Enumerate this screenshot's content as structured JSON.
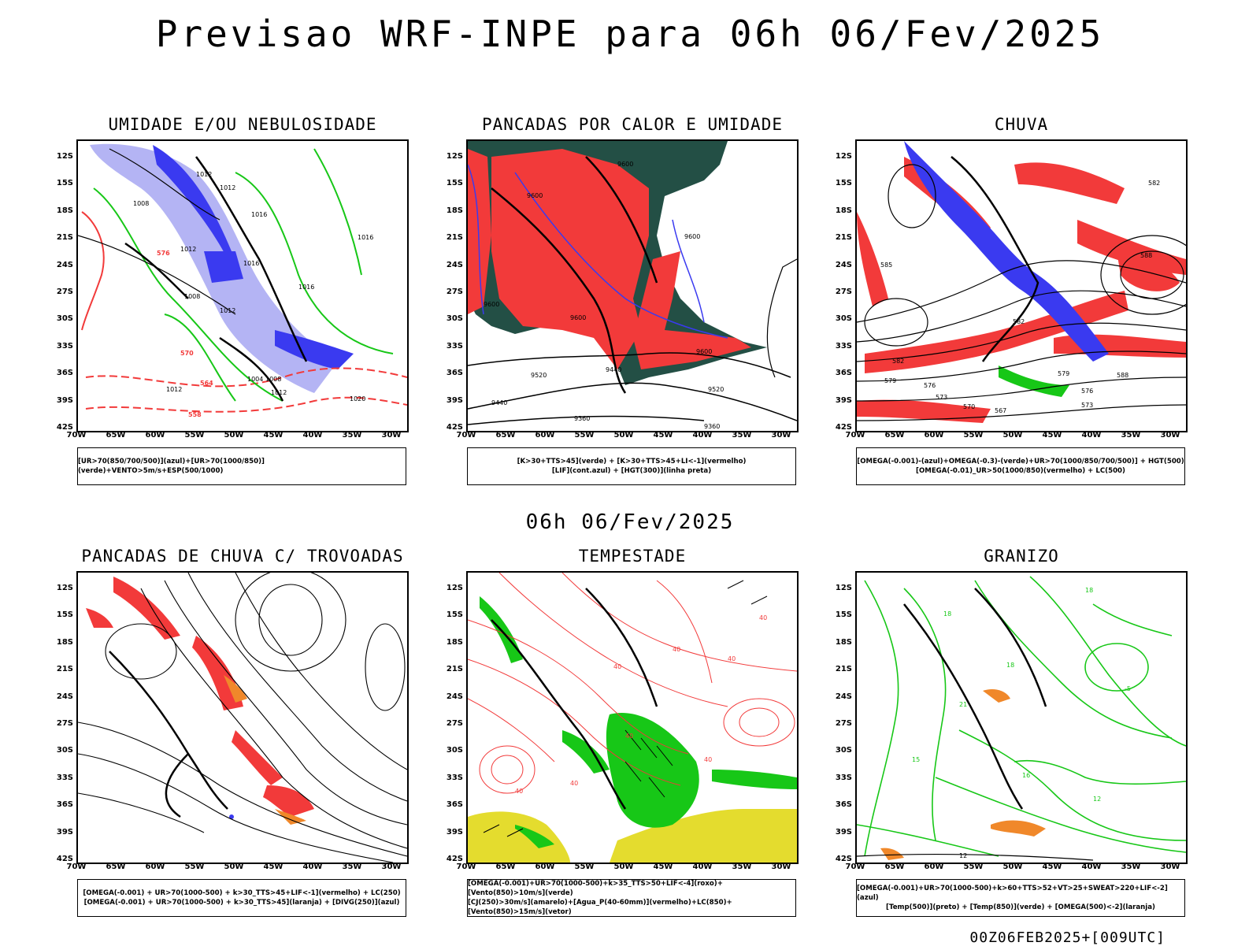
{
  "title": "Previsao WRF-INPE  para 06h 06/Fev/2025",
  "subtitle": "06h 06/Fev/2025",
  "footer": "00Z06FEB2025+[009UTC]",
  "axes": {
    "lat": [
      "12S",
      "15S",
      "18S",
      "21S",
      "24S",
      "27S",
      "30S",
      "33S",
      "36S",
      "39S",
      "42S"
    ],
    "lon": [
      "70W",
      "65W",
      "60W",
      "55W",
      "50W",
      "45W",
      "40W",
      "35W",
      "30W"
    ]
  },
  "colors": {
    "blue": "#3a3af0",
    "lightblue": "#b4b4f4",
    "green": "#17c717",
    "red": "#f23a3a",
    "darkgreen": "#234f45",
    "yellow": "#e4dc2e",
    "orange": "#f0882a"
  },
  "panels": [
    {
      "title": "UMIDADE E/OU NEBULOSIDADE",
      "legend": [
        "[UR>70(850/700/500)](azul)+[UR>70(1000/850)](verde)+VENTO>5m/s+ESP(500/1000)"
      ],
      "labels": [
        "1012",
        "1012",
        "1016",
        "1008",
        "1012",
        "1016",
        "1016",
        "1016",
        "1012",
        "1008",
        "1004",
        "1008",
        "1012",
        "1020",
        "1012",
        "576",
        "570",
        "564",
        "558",
        "1012",
        "1016"
      ]
    },
    {
      "title": "PANCADAS POR CALOR E UMIDADE",
      "legend": [
        "[K>30+TTS>45](verde) + [K>30+TTS>45+LI<-1](vermelho)",
        "[LIF](cont.azul) + [HGT(300)](linha preta)"
      ],
      "labels": [
        "9600",
        "9600",
        "9600",
        "9600",
        "9600",
        "9600",
        "9520",
        "9440",
        "9440",
        "9360",
        "9360",
        "9520"
      ]
    },
    {
      "title": "CHUVA",
      "legend": [
        "[OMEGA(-0.001)-(azul)+OMEGA(-0.3)-(verde)+UR>70(1000/850/700/500)] + HGT(500)",
        "[OMEGA(-0.01)_UR>50(1000/850)(vermelho) + LC(500)"
      ],
      "labels": [
        "582",
        "588",
        "585",
        "582",
        "579",
        "576",
        "573",
        "570",
        "567",
        "573",
        "576",
        "579",
        "582",
        "588"
      ]
    },
    {
      "title": "PANCADAS DE CHUVA C/ TROVOADAS",
      "legend": [
        "[OMEGA(-0.001) + UR>70(1000-500) + k>30_TTS>45+LIF<-1](vermelho) + LC(250)",
        "[OMEGA(-0.001) + UR>70(1000-500) + k>30_TTS>45](laranja) + [DIVG(250)](azul)"
      ],
      "labels": []
    },
    {
      "title": "TEMPESTADE",
      "legend": [
        "[OMEGA(-0.001)+UR>70(1000-500)+k>35_TTS>50+LIF<-4](roxo)+[Vento(850)>10m/s](verde)",
        "[CJ(250)>30m/s](amarelo)+[Agua_P(40-60mm)](vermelho)+LC(850)+[Vento(850)>15m/s](vetor)"
      ],
      "labels": [
        "40",
        "40",
        "40",
        "40",
        "40",
        "40",
        "40",
        "40"
      ]
    },
    {
      "title": "GRANIZO",
      "legend": [
        "[OMEGA(-0.001)+UR>70(1000-500)+k>60+TTS>52+VT>25+SWEAT>220+LIF<-2](azul)",
        "[Temp(500)](preto) + [Temp(850)](verde) + [OMEGA(500)<-2](laranja)"
      ],
      "labels": [
        "18",
        "18",
        "18",
        "16",
        "12",
        "-5",
        "21",
        "15",
        "12"
      ]
    }
  ]
}
